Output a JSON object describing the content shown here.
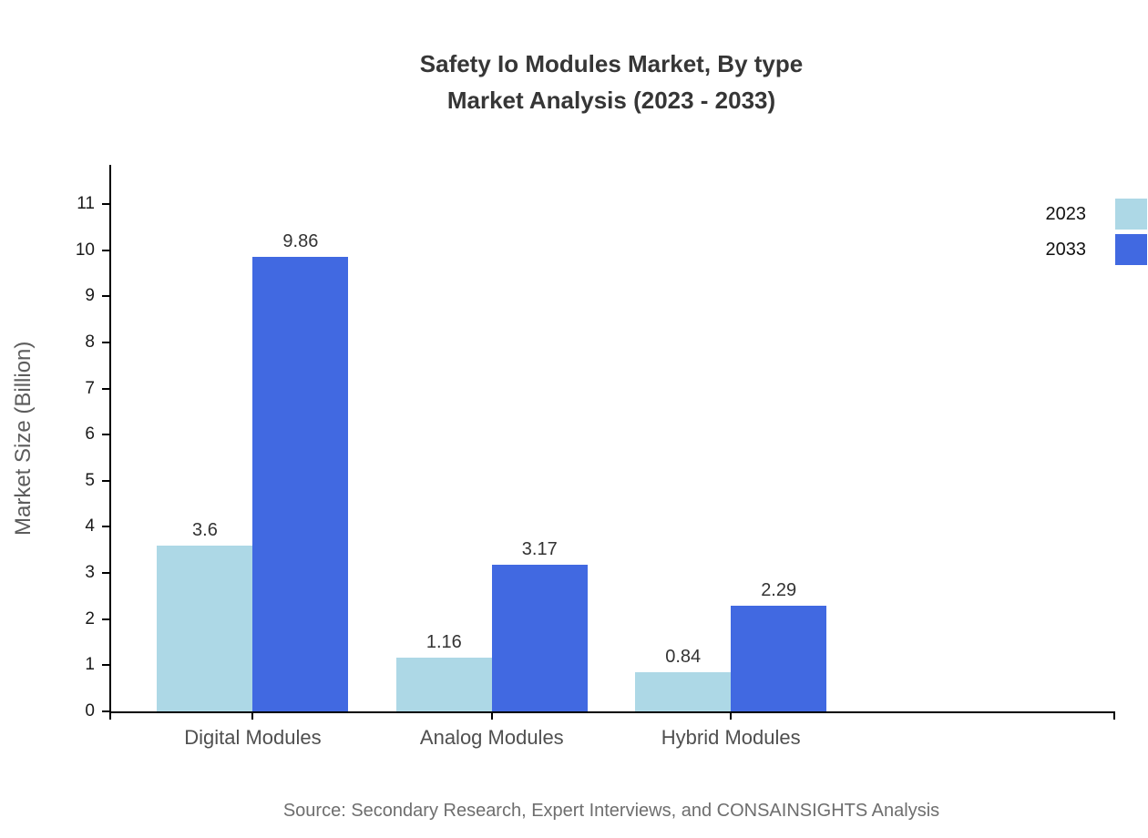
{
  "title": {
    "line1": "Safety Io Modules Market, By type",
    "line2": "Market Analysis (2023 - 2033)"
  },
  "source_note": "Source: Secondary Research, Expert Interviews, and CONSAINSIGHTS Analysis",
  "colors": {
    "series_2023": "#ADD8E6",
    "series_2033": "#4169E1",
    "axis": "#000000",
    "title_text": "#363636",
    "tick_text": "#1a1a1a",
    "category_text": "#4f4f4f",
    "value_text": "#333333",
    "axis_title_text": "#5c5c5c",
    "source_text": "#6e6e6e",
    "background": "#ffffff"
  },
  "chart_data": {
    "type": "bar",
    "title": "Safety Io Modules Market, By type Market Analysis (2023 - 2033)",
    "categories": [
      "Digital Modules",
      "Analog Modules",
      "Hybrid Modules"
    ],
    "series": [
      {
        "name": "2023",
        "color": "#ADD8E6",
        "values": [
          3.6,
          1.16,
          0.84
        ],
        "value_labels": [
          "3.6",
          "1.16",
          "0.84"
        ]
      },
      {
        "name": "2033",
        "color": "#4169E1",
        "values": [
          9.86,
          3.17,
          2.29
        ],
        "value_labels": [
          "9.86",
          "3.17",
          "2.29"
        ]
      }
    ],
    "xlabel": "",
    "ylabel": "Market Size (Billion)",
    "ylim": [
      0,
      11
    ],
    "yticks": [
      0,
      1,
      2,
      3,
      4,
      5,
      6,
      7,
      8,
      9,
      10,
      11
    ],
    "grid": false,
    "legend_position": "top-right",
    "bar_value_labels_shown": true
  },
  "legend": {
    "items": [
      {
        "label": "2023",
        "color": "#ADD8E6"
      },
      {
        "label": "2033",
        "color": "#4169E1"
      }
    ]
  }
}
